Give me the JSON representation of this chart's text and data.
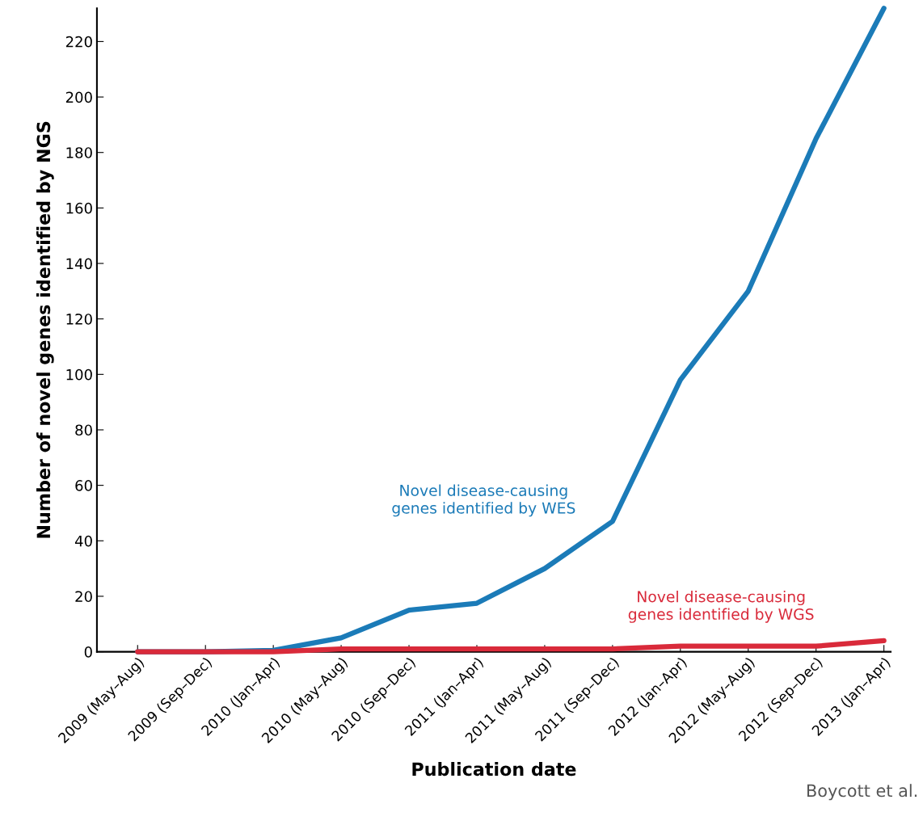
{
  "chart_data": {
    "type": "line",
    "xlabel": "Publication date",
    "ylabel": "Number of novel genes identified by NGS",
    "categories": [
      "2009 (May–Aug)",
      "2009 (Sep–Dec)",
      "2010 (Jan–Apr)",
      "2010 (May–Aug)",
      "2010 (Sep–Dec)",
      "2011 (Jan–Apr)",
      "2011 (May–Aug)",
      "2011 (Sep–Dec)",
      "2012 (Jan–Apr)",
      "2012 (May–Aug)",
      "2012 (Sep–Dec)",
      "2013 (Jan–Apr)"
    ],
    "series": [
      {
        "name": "Novel disease-causing\ngenes identified by WES",
        "color": "#1b7bb8",
        "values": [
          0,
          0,
          0.5,
          5,
          15,
          17.5,
          30,
          47,
          98,
          130,
          185,
          232
        ]
      },
      {
        "name": "Novel disease-causing\ngenes identified by WGS",
        "color": "#d92a3a",
        "values": [
          0,
          0,
          0,
          1,
          1,
          1,
          1,
          1,
          2,
          2,
          2,
          4
        ]
      }
    ],
    "ylim": [
      0,
      232
    ],
    "yticks": [
      0,
      20,
      40,
      60,
      80,
      100,
      120,
      140,
      160,
      180,
      200,
      220
    ],
    "grid": false,
    "legend": false,
    "marker": "none",
    "line_style": "solid",
    "annotations": [
      "Boycott et al."
    ]
  }
}
